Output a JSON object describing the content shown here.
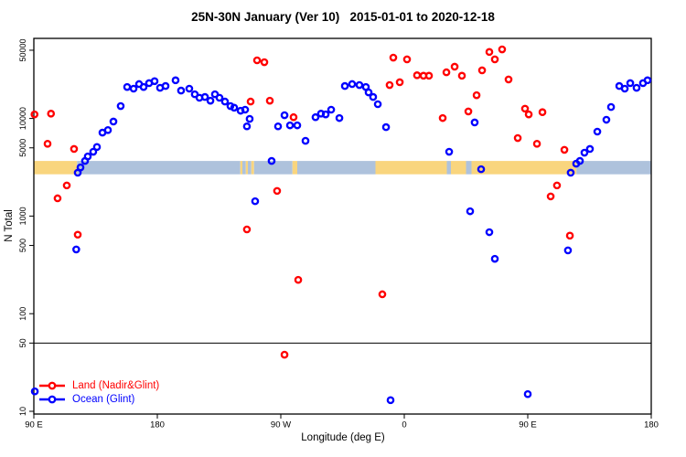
{
  "chart_data": {
    "type": "scatter",
    "title": "25N-30N January (Ver 10)   2015-01-01 to 2020-12-18",
    "xlabel": "Longitude (deg E)",
    "ylabel": "N Total",
    "x_axis": {
      "min": 90,
      "max": 540,
      "ticks": [
        {
          "value": 90,
          "label": "90 E"
        },
        {
          "value": 180,
          "label": "180"
        },
        {
          "value": 270,
          "label": "90 W"
        },
        {
          "value": 360,
          "label": "0"
        },
        {
          "value": 450,
          "label": "90 E"
        },
        {
          "value": 540,
          "label": "180"
        }
      ]
    },
    "y_axis": {
      "scale": "log",
      "min": 10,
      "max": 66000,
      "ticks": [
        {
          "value": 10,
          "label": "10"
        },
        {
          "value": 50,
          "label": "50"
        },
        {
          "value": 100,
          "label": "100"
        },
        {
          "value": 500,
          "label": "500"
        },
        {
          "value": 1000,
          "label": "1000"
        },
        {
          "value": 5000,
          "label": "5000"
        },
        {
          "value": 10000,
          "label": "10000"
        },
        {
          "value": 50000,
          "label": "50000"
        }
      ]
    },
    "threshold_line": {
      "value": 50,
      "color": "#000000"
    },
    "surface_band": {
      "top_value": 3670,
      "bottom_value": 2680,
      "land_color": "#F9D57E",
      "ocean_color": "#AEC2DC",
      "segments": [
        {
          "from": 90,
          "to": 121.5,
          "type": "land"
        },
        {
          "from": 121.5,
          "to": 240.5,
          "type": "ocean"
        },
        {
          "from": 240.5,
          "to": 242,
          "type": "land"
        },
        {
          "from": 242,
          "to": 244.5,
          "type": "ocean"
        },
        {
          "from": 244.5,
          "to": 246,
          "type": "land"
        },
        {
          "from": 246,
          "to": 248.5,
          "type": "ocean"
        },
        {
          "from": 248.5,
          "to": 250.5,
          "type": "land"
        },
        {
          "from": 250.5,
          "to": 278.5,
          "type": "ocean"
        },
        {
          "from": 278.5,
          "to": 282,
          "type": "land"
        },
        {
          "from": 282,
          "to": 339,
          "type": "ocean"
        },
        {
          "from": 339,
          "to": 391,
          "type": "land"
        },
        {
          "from": 391,
          "to": 394,
          "type": "ocean"
        },
        {
          "from": 394,
          "to": 405,
          "type": "land"
        },
        {
          "from": 405,
          "to": 409,
          "type": "ocean"
        },
        {
          "from": 409,
          "to": 485.5,
          "type": "land"
        },
        {
          "from": 485.5,
          "to": 540,
          "type": "ocean"
        }
      ]
    },
    "series": [
      {
        "name": "Land (Nadir&Glint)",
        "color": "#FF0000",
        "points": [
          [
            90.5,
            11000
          ],
          [
            100,
            5500
          ],
          [
            102.5,
            11200
          ],
          [
            107.3,
            1520
          ],
          [
            114,
            2060
          ],
          [
            119.3,
            4870
          ],
          [
            122,
            645
          ],
          [
            245.3,
            730
          ],
          [
            248,
            14900
          ],
          [
            252.7,
            39400
          ],
          [
            258,
            37700
          ],
          [
            262,
            15200
          ],
          [
            267.3,
            1810
          ],
          [
            272.7,
            38
          ],
          [
            279.3,
            10300
          ],
          [
            282.7,
            222
          ],
          [
            344,
            158
          ],
          [
            349.3,
            22000
          ],
          [
            352,
            42000
          ],
          [
            356.7,
            23500
          ],
          [
            362,
            40300
          ],
          [
            369.3,
            27700
          ],
          [
            374,
            27400
          ],
          [
            378,
            27400
          ],
          [
            388,
            10100
          ],
          [
            390.7,
            29700
          ],
          [
            396.7,
            33900
          ],
          [
            402,
            27400
          ],
          [
            406.7,
            11800
          ],
          [
            412.7,
            17300
          ],
          [
            416.7,
            31100
          ],
          [
            422,
            48000
          ],
          [
            426,
            40300
          ],
          [
            431.3,
            51000
          ],
          [
            436,
            25100
          ],
          [
            442.7,
            6300
          ],
          [
            448,
            12600
          ],
          [
            450.7,
            11000
          ],
          [
            456.7,
            5500
          ],
          [
            460.7,
            11600
          ],
          [
            466.7,
            1590
          ],
          [
            471.3,
            2060
          ],
          [
            476.7,
            4770
          ],
          [
            480.7,
            630
          ]
        ]
      },
      {
        "name": "Ocean (Glint)",
        "color": "#0000FF",
        "points": [
          [
            90.7,
            16
          ],
          [
            120.9,
            455
          ],
          [
            122,
            2780
          ],
          [
            124,
            3150
          ],
          [
            127.3,
            3670
          ],
          [
            129.3,
            4080
          ],
          [
            133.3,
            4560
          ],
          [
            136,
            5100
          ],
          [
            140,
            7160
          ],
          [
            144,
            7600
          ],
          [
            148,
            9300
          ],
          [
            153.3,
            13400
          ],
          [
            158,
            21000
          ],
          [
            162.7,
            20200
          ],
          [
            166.7,
            22500
          ],
          [
            170,
            21000
          ],
          [
            174,
            23000
          ],
          [
            178,
            24100
          ],
          [
            182,
            20600
          ],
          [
            186,
            21500
          ],
          [
            193.3,
            24600
          ],
          [
            197.3,
            19300
          ],
          [
            203.3,
            20200
          ],
          [
            207.3,
            17700
          ],
          [
            210.7,
            16300
          ],
          [
            214.7,
            16600
          ],
          [
            218.7,
            15200
          ],
          [
            222,
            17700
          ],
          [
            225.3,
            16300
          ],
          [
            229.3,
            14900
          ],
          [
            233.3,
            13400
          ],
          [
            236,
            12900
          ],
          [
            240.7,
            12000
          ],
          [
            244,
            12300
          ],
          [
            245.3,
            8300
          ],
          [
            247.3,
            9900
          ],
          [
            251.3,
            1420
          ],
          [
            263.3,
            3670
          ],
          [
            268,
            8300
          ],
          [
            272.7,
            10800
          ],
          [
            276.7,
            8500
          ],
          [
            282,
            8500
          ],
          [
            288,
            5900
          ],
          [
            295.3,
            10300
          ],
          [
            299.3,
            11200
          ],
          [
            302.7,
            11000
          ],
          [
            306.7,
            12300
          ],
          [
            312.7,
            10100
          ],
          [
            316.7,
            21500
          ],
          [
            322,
            22500
          ],
          [
            327.3,
            22000
          ],
          [
            332,
            21000
          ],
          [
            334,
            18500
          ],
          [
            337.3,
            16600
          ],
          [
            340.7,
            14000
          ],
          [
            346.7,
            8150
          ],
          [
            350,
            13
          ],
          [
            392.7,
            4560
          ],
          [
            408,
            1120
          ],
          [
            411.3,
            9100
          ],
          [
            416,
            3020
          ],
          [
            422,
            684
          ],
          [
            426,
            365
          ],
          [
            450,
            15
          ],
          [
            479.3,
            445
          ],
          [
            481.3,
            2780
          ],
          [
            485.3,
            3440
          ],
          [
            488,
            3670
          ],
          [
            491.3,
            4460
          ],
          [
            495.3,
            4870
          ],
          [
            500.7,
            7330
          ],
          [
            507.3,
            9700
          ],
          [
            510.7,
            13100
          ],
          [
            516.7,
            21500
          ],
          [
            520.7,
            20200
          ],
          [
            524.7,
            23000
          ],
          [
            529.3,
            20600
          ],
          [
            534,
            23000
          ],
          [
            537.3,
            24600
          ]
        ]
      }
    ],
    "legend": {
      "position": "bottom-left"
    }
  }
}
